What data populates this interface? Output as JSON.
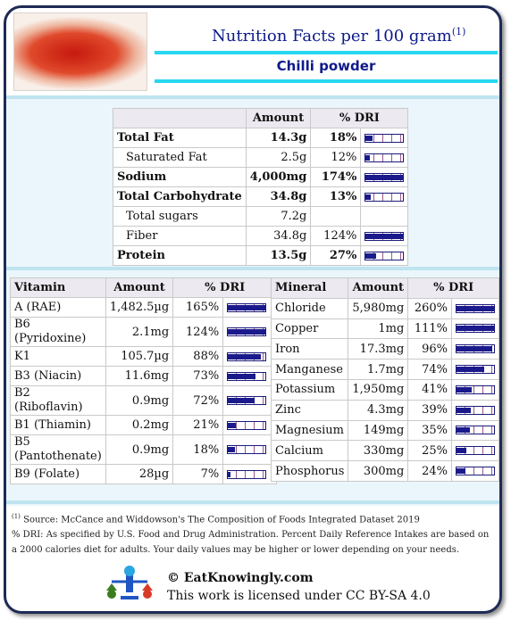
{
  "header": {
    "title": "Nutrition Facts per 100 gram",
    "title_sup": "(1)",
    "subtitle": "Chilli powder"
  },
  "main_table": {
    "headers": [
      "",
      "Amount",
      "% DRI"
    ],
    "rows": [
      {
        "name": "Total Fat",
        "amount": "14.3g",
        "dri": "18%",
        "pct": 18,
        "bold": true,
        "sub": false
      },
      {
        "name": "Saturated Fat",
        "amount": "2.5g",
        "dri": "12%",
        "pct": 12,
        "bold": false,
        "sub": true
      },
      {
        "name": "Sodium",
        "amount": "4,000mg",
        "dri": "174%",
        "pct": 174,
        "bold": true,
        "sub": false
      },
      {
        "name": "Total Carbohydrate",
        "amount": "34.8g",
        "dri": "13%",
        "pct": 13,
        "bold": true,
        "sub": false
      },
      {
        "name": "Total sugars",
        "amount": "7.2g",
        "dri": "",
        "pct": null,
        "bold": false,
        "sub": true
      },
      {
        "name": "Fiber",
        "amount": "34.8g",
        "dri": "124%",
        "pct": 124,
        "bold": false,
        "sub": true
      },
      {
        "name": "Protein",
        "amount": "13.5g",
        "dri": "27%",
        "pct": 27,
        "bold": true,
        "sub": false
      }
    ]
  },
  "vitamin_table": {
    "headers": [
      "Vitamin",
      "Amount",
      "% DRI"
    ],
    "rows": [
      {
        "name": "A (RAE)",
        "amount": "1,482.5µg",
        "dri": "165%",
        "pct": 165
      },
      {
        "name": "B6 (Pyridoxine)",
        "amount": "2.1mg",
        "dri": "124%",
        "pct": 124
      },
      {
        "name": "K1",
        "amount": "105.7µg",
        "dri": "88%",
        "pct": 88
      },
      {
        "name": "B3 (Niacin)",
        "amount": "11.6mg",
        "dri": "73%",
        "pct": 73
      },
      {
        "name": "B2 (Riboflavin)",
        "amount": "0.9mg",
        "dri": "72%",
        "pct": 72
      },
      {
        "name": "B1 (Thiamin)",
        "amount": "0.2mg",
        "dri": "21%",
        "pct": 21
      },
      {
        "name": "B5 (Pantothenate)",
        "amount": "0.9mg",
        "dri": "18%",
        "pct": 18
      },
      {
        "name": "B9 (Folate)",
        "amount": "28µg",
        "dri": "7%",
        "pct": 7
      }
    ]
  },
  "mineral_table": {
    "headers": [
      "Mineral",
      "Amount",
      "% DRI"
    ],
    "rows": [
      {
        "name": "Chloride",
        "amount": "5,980mg",
        "dri": "260%",
        "pct": 260
      },
      {
        "name": "Copper",
        "amount": "1mg",
        "dri": "111%",
        "pct": 111
      },
      {
        "name": "Iron",
        "amount": "17.3mg",
        "dri": "96%",
        "pct": 96
      },
      {
        "name": "Manganese",
        "amount": "1.7mg",
        "dri": "74%",
        "pct": 74
      },
      {
        "name": "Potassium",
        "amount": "1,950mg",
        "dri": "41%",
        "pct": 41
      },
      {
        "name": "Zinc",
        "amount": "4.3mg",
        "dri": "39%",
        "pct": 39
      },
      {
        "name": "Magnesium",
        "amount": "149mg",
        "dri": "35%",
        "pct": 35
      },
      {
        "name": "Calcium",
        "amount": "330mg",
        "dri": "25%",
        "pct": 25
      },
      {
        "name": "Phosphorus",
        "amount": "300mg",
        "dri": "24%",
        "pct": 24
      }
    ]
  },
  "footnotes": {
    "source_sup": "(1)",
    "source": "Source: McCance and Widdowson's The Composition of Foods Integrated Dataset 2019",
    "dri": "% DRI: As specified by U.S. Food and Drug Administration. Percent Daily Reference Intakes are based on a 2000 calories diet for adults. Your daily values may be higher or lower depending on your needs."
  },
  "footer": {
    "site": "© EatKnowingly.com",
    "license": "This work is licensed under CC BY-SA 4.0"
  },
  "colors": {
    "accent": "#27d7f0",
    "title": "#0d1a8a",
    "bar_fill": "#1a1a8c",
    "frame": "#1e2a55"
  },
  "icons": {
    "photo": "chilli-powder-photo",
    "logo": "eatknowingly-logo"
  }
}
